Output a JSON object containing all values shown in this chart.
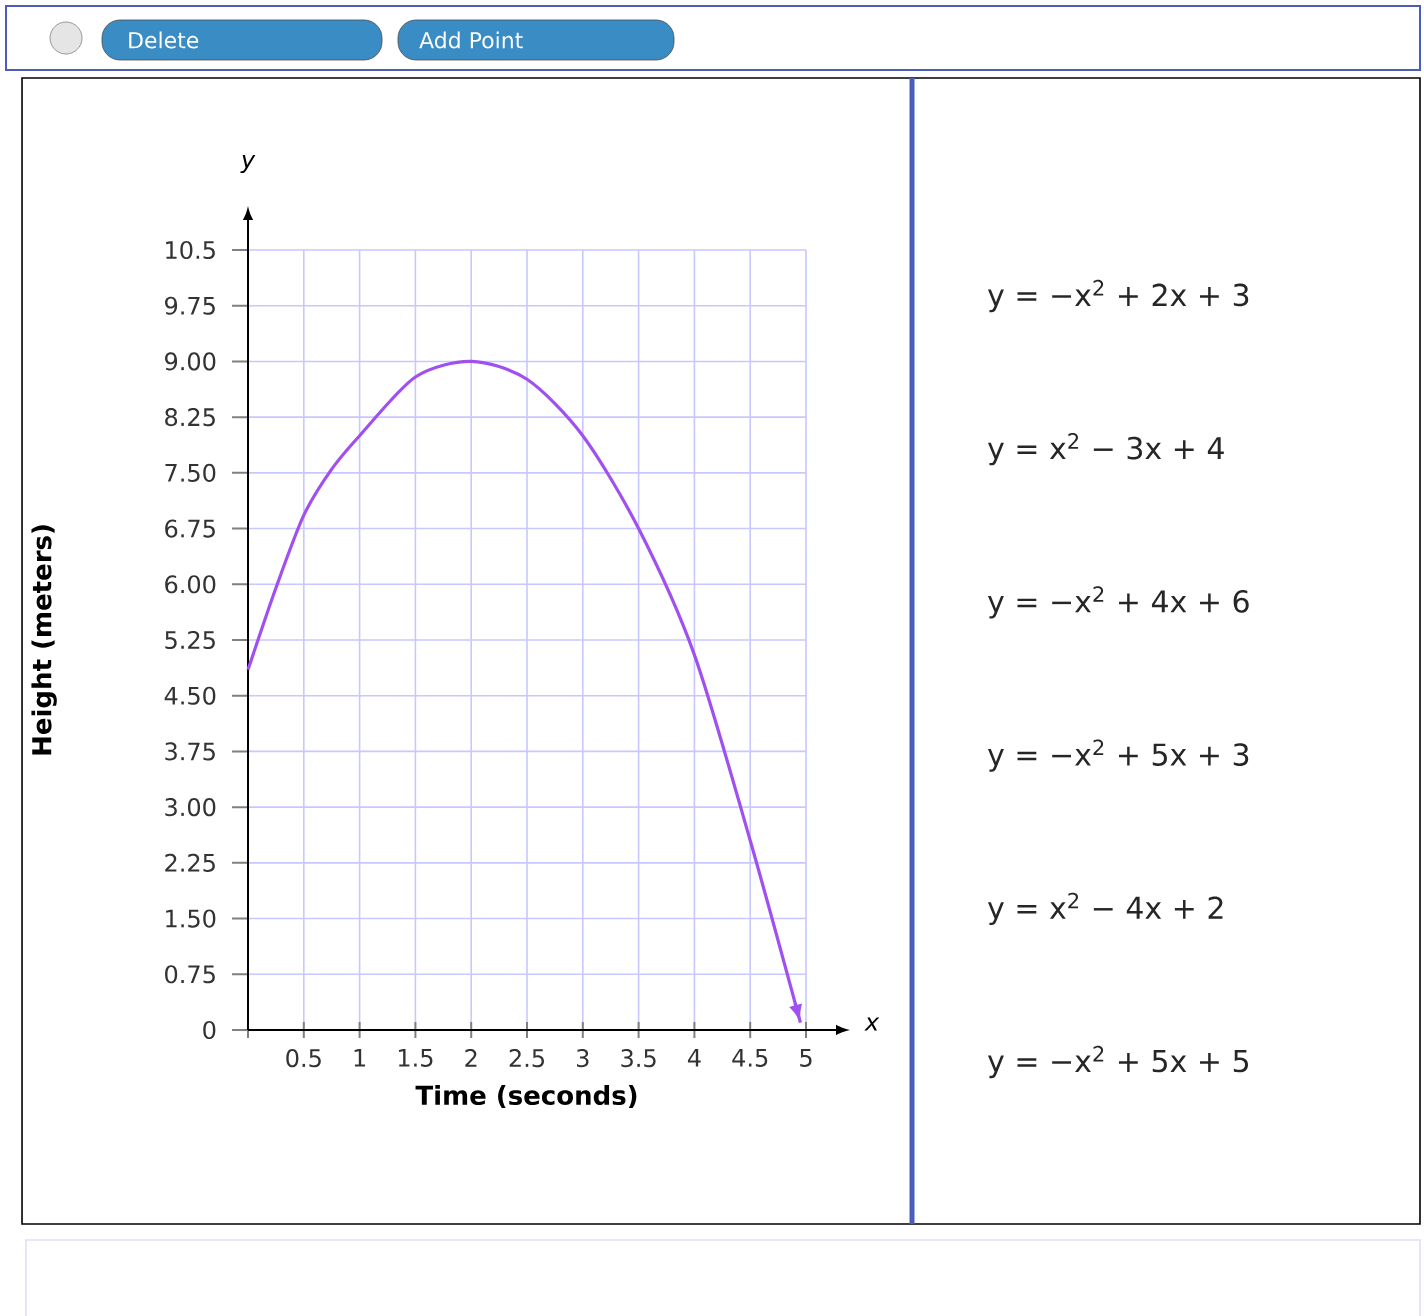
{
  "chart_data": {
    "type": "line",
    "xlabel": "Time (seconds)",
    "ylabel": "Height (meters)",
    "x": [
      0,
      0.25,
      0.5,
      0.75,
      1,
      1.5,
      2,
      2.5,
      3,
      3.5,
      4,
      4.5,
      4.95
    ],
    "values": [
      4.85,
      5.95,
      6.93,
      7.55,
      8.0,
      8.79,
      9.0,
      8.76,
      8.0,
      6.75,
      5.05,
      2.55,
      0.1
    ],
    "color": "#a050f0",
    "xlim": [
      0,
      5
    ],
    "ylim": [
      0,
      10.5
    ],
    "xticks": [
      {
        "value": 0,
        "label": null
      },
      0.5,
      1,
      1.5,
      2,
      2.5,
      3,
      3.5,
      4,
      4.5,
      5
    ],
    "yticks": [
      0,
      0.75,
      {
        "value": 1.5,
        "label": "1.50"
      },
      2.25,
      {
        "value": 3,
        "label": "3.00"
      },
      3.75,
      {
        "value": 4.5,
        "label": "4.50"
      },
      5.25,
      {
        "value": 6,
        "label": "6.00"
      },
      6.75,
      {
        "value": 7.5,
        "label": "7.50"
      },
      8.25,
      {
        "value": 9,
        "label": "9.00"
      },
      9.75,
      10.5
    ],
    "grid": true,
    "annotations": [
      "Delete",
      "Add Point",
      "y",
      "x",
      "y = −x$^{2}$ + 2x + 3",
      "y = x$^{2}$ − 3x + 4",
      "y = −x$^{2}$ + 4x + 6",
      "y = −x$^{2}$ + 5x + 3",
      "y = x$^{2}$ − 4x + 2",
      "y = −x$^{2}$ + 5x + 5"
    ]
  }
}
